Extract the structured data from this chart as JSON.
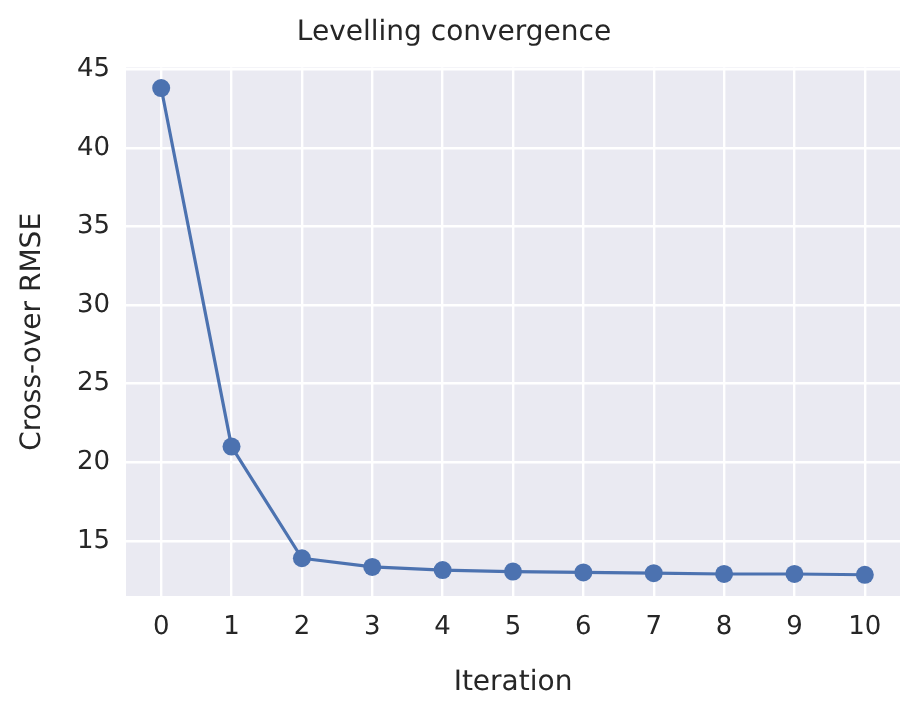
{
  "chart_data": {
    "type": "line",
    "title": "Levelling convergence",
    "xlabel": "Iteration",
    "ylabel": "Cross-over RMSE",
    "x": [
      0,
      1,
      2,
      3,
      4,
      5,
      6,
      7,
      8,
      9,
      10
    ],
    "series": [
      {
        "color": "#4c72b0",
        "values": [
          43.8,
          21.0,
          13.9,
          13.35,
          13.15,
          13.05,
          13.0,
          12.95,
          12.9,
          12.9,
          12.85
        ]
      }
    ],
    "xlim": [
      -0.5,
      10.5
    ],
    "xticks": [
      0,
      1,
      2,
      3,
      4,
      5,
      6,
      7,
      8,
      9,
      10
    ],
    "ylim": [
      11.5,
      45.1
    ],
    "yticks": [
      15,
      20,
      25,
      30,
      35,
      40,
      45
    ],
    "grid": true,
    "legend": false,
    "marker": "circle",
    "line_style": "solid"
  }
}
